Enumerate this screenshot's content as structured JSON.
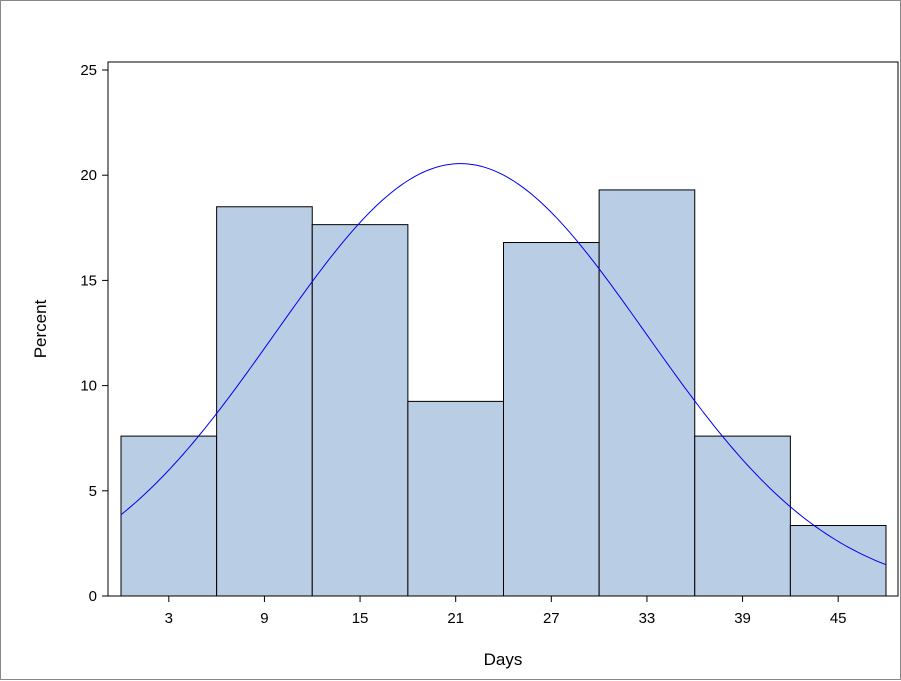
{
  "chart_data": {
    "type": "bar",
    "subtype": "histogram",
    "xlabel": "Days",
    "ylabel": "Percent",
    "bins": [
      {
        "midpoint": 3,
        "value": 7.6
      },
      {
        "midpoint": 9,
        "value": 18.5
      },
      {
        "midpoint": 15,
        "value": 17.65
      },
      {
        "midpoint": 21,
        "value": 9.25
      },
      {
        "midpoint": 27,
        "value": 16.8
      },
      {
        "midpoint": 33,
        "value": 19.3
      },
      {
        "midpoint": 39,
        "value": 7.6
      },
      {
        "midpoint": 45,
        "value": 3.35
      }
    ],
    "bin_width": 6,
    "x_ticks": [
      3,
      9,
      15,
      21,
      27,
      33,
      39,
      45
    ],
    "y_ticks": [
      0,
      5,
      10,
      15,
      20,
      25
    ],
    "xlim": [
      0,
      48
    ],
    "ylim": [
      0,
      25
    ],
    "normal_curve": {
      "mean": 21.3,
      "std_dev": 11.65,
      "peak": 20.55,
      "color": "#0000ee"
    },
    "bar_fill": "#b9cde5",
    "bar_stroke": "#000000",
    "grid": false,
    "legend": "none"
  }
}
